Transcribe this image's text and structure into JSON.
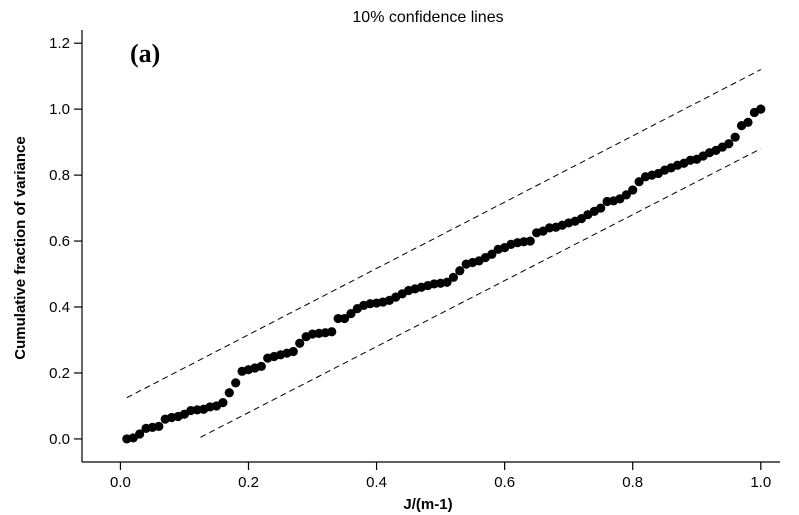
{
  "chart_data": {
    "type": "scatter",
    "title": "10% confidence lines",
    "panel_label": "(a)",
    "xlabel": "J/(m-1)",
    "ylabel": "Cumulative fraction of variance",
    "xlim": [
      -0.06,
      1.03
    ],
    "ylim": [
      -0.07,
      1.24
    ],
    "x_ticks": [
      0.0,
      0.2,
      0.4,
      0.6,
      0.8,
      1.0
    ],
    "x_tick_labels": [
      "0.0",
      "0.2",
      "0.4",
      "0.6",
      "0.8",
      "1.0"
    ],
    "y_ticks": [
      0.0,
      0.2,
      0.4,
      0.6,
      0.8,
      1.0,
      1.2
    ],
    "y_tick_labels": [
      "0.0",
      "0.2",
      "0.4",
      "0.6",
      "0.8",
      "1.0",
      "1.2"
    ],
    "grid": false,
    "legend": "none",
    "confidence_band": {
      "upper": [
        [
          0.01,
          0.125
        ],
        [
          1.0,
          1.12
        ]
      ],
      "lower": [
        [
          0.125,
          0.005
        ],
        [
          1.0,
          0.88
        ]
      ],
      "style": "dashed"
    },
    "series": [
      {
        "points": [
          [
            0.01,
            0.0
          ],
          [
            0.02,
            0.003
          ],
          [
            0.03,
            0.015
          ],
          [
            0.04,
            0.032
          ],
          [
            0.05,
            0.035
          ],
          [
            0.06,
            0.038
          ],
          [
            0.07,
            0.06
          ],
          [
            0.08,
            0.065
          ],
          [
            0.09,
            0.068
          ],
          [
            0.1,
            0.075
          ],
          [
            0.11,
            0.086
          ],
          [
            0.12,
            0.088
          ],
          [
            0.13,
            0.09
          ],
          [
            0.14,
            0.097
          ],
          [
            0.15,
            0.1
          ],
          [
            0.16,
            0.11
          ],
          [
            0.17,
            0.14
          ],
          [
            0.18,
            0.17
          ],
          [
            0.19,
            0.205
          ],
          [
            0.2,
            0.21
          ],
          [
            0.21,
            0.215
          ],
          [
            0.22,
            0.22
          ],
          [
            0.23,
            0.245
          ],
          [
            0.24,
            0.25
          ],
          [
            0.25,
            0.255
          ],
          [
            0.26,
            0.26
          ],
          [
            0.27,
            0.265
          ],
          [
            0.28,
            0.29
          ],
          [
            0.29,
            0.31
          ],
          [
            0.3,
            0.318
          ],
          [
            0.31,
            0.32
          ],
          [
            0.32,
            0.322
          ],
          [
            0.33,
            0.325
          ],
          [
            0.34,
            0.365
          ],
          [
            0.35,
            0.365
          ],
          [
            0.36,
            0.38
          ],
          [
            0.37,
            0.395
          ],
          [
            0.38,
            0.405
          ],
          [
            0.39,
            0.41
          ],
          [
            0.4,
            0.412
          ],
          [
            0.41,
            0.415
          ],
          [
            0.42,
            0.42
          ],
          [
            0.43,
            0.43
          ],
          [
            0.44,
            0.44
          ],
          [
            0.45,
            0.45
          ],
          [
            0.46,
            0.455
          ],
          [
            0.47,
            0.46
          ],
          [
            0.48,
            0.465
          ],
          [
            0.49,
            0.47
          ],
          [
            0.5,
            0.472
          ],
          [
            0.51,
            0.475
          ],
          [
            0.52,
            0.49
          ],
          [
            0.53,
            0.51
          ],
          [
            0.54,
            0.53
          ],
          [
            0.55,
            0.535
          ],
          [
            0.56,
            0.54
          ],
          [
            0.57,
            0.55
          ],
          [
            0.58,
            0.56
          ],
          [
            0.59,
            0.575
          ],
          [
            0.6,
            0.58
          ],
          [
            0.61,
            0.59
          ],
          [
            0.62,
            0.595
          ],
          [
            0.63,
            0.598
          ],
          [
            0.64,
            0.6
          ],
          [
            0.65,
            0.625
          ],
          [
            0.66,
            0.63
          ],
          [
            0.67,
            0.64
          ],
          [
            0.68,
            0.642
          ],
          [
            0.69,
            0.648
          ],
          [
            0.7,
            0.655
          ],
          [
            0.71,
            0.66
          ],
          [
            0.72,
            0.668
          ],
          [
            0.73,
            0.68
          ],
          [
            0.74,
            0.69
          ],
          [
            0.75,
            0.7
          ],
          [
            0.76,
            0.72
          ],
          [
            0.77,
            0.722
          ],
          [
            0.78,
            0.728
          ],
          [
            0.79,
            0.74
          ],
          [
            0.8,
            0.755
          ],
          [
            0.81,
            0.78
          ],
          [
            0.82,
            0.795
          ],
          [
            0.83,
            0.8
          ],
          [
            0.84,
            0.805
          ],
          [
            0.85,
            0.815
          ],
          [
            0.86,
            0.822
          ],
          [
            0.87,
            0.83
          ],
          [
            0.88,
            0.836
          ],
          [
            0.89,
            0.845
          ],
          [
            0.9,
            0.848
          ],
          [
            0.91,
            0.858
          ],
          [
            0.92,
            0.868
          ],
          [
            0.93,
            0.875
          ],
          [
            0.94,
            0.885
          ],
          [
            0.95,
            0.895
          ],
          [
            0.96,
            0.915
          ],
          [
            0.97,
            0.95
          ],
          [
            0.98,
            0.96
          ],
          [
            0.99,
            0.99
          ],
          [
            1.0,
            1.0
          ]
        ]
      }
    ]
  }
}
